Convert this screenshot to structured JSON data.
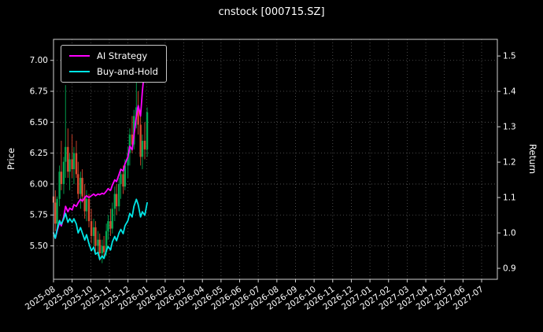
{
  "chart_data": {
    "type": "candlestick+line",
    "title": "cnstock [000715.SZ]",
    "ylabel_left": "Price",
    "ylabel_right": "Return",
    "grid": true,
    "legend_position": "upper left",
    "x_tick_labels": [
      "2025-08",
      "2025-09",
      "2025-10",
      "2025-11",
      "2025-12",
      "2026-01",
      "2026-02",
      "2026-03",
      "2026-04",
      "2026-05",
      "2026-06",
      "2026-07",
      "2026-08",
      "2026-09",
      "2026-10",
      "2026-11",
      "2026-12",
      "2027-01",
      "2027-02",
      "2027-03",
      "2027-04",
      "2027-05",
      "2027-06",
      "2027-07"
    ],
    "price_ticks": {
      "values": [
        7.0,
        6.75,
        6.5,
        6.25,
        6.0,
        5.75,
        5.5
      ],
      "labels": [
        "7.00",
        "6.75",
        "6.50",
        "6.25",
        "6.00",
        "5.75",
        "5.50"
      ]
    },
    "return_ticks": {
      "values": [
        1.5,
        1.4,
        1.3,
        1.2,
        1.1,
        1.0,
        0.9
      ],
      "labels": [
        "1.5",
        "1.4",
        "1.3",
        "1.2",
        "1.1",
        "1.0",
        "0.9"
      ]
    },
    "price_lim": [
      5.23,
      7.17
    ],
    "return_lim": [
      0.869,
      1.547
    ],
    "colors": {
      "background": "#000000",
      "text": "#ffffff",
      "grid": "#5a5a5a",
      "spine": "#d0d0d0",
      "candle_up": "#00a651",
      "candle_down": "#d9482f",
      "ai_strategy": "#ff00ff",
      "buy_and_hold": "#00e5e5"
    },
    "dates": [
      "2025-08-01",
      "2025-08-04",
      "2025-08-07",
      "2025-08-11",
      "2025-08-14",
      "2025-08-18",
      "2025-08-21",
      "2025-08-25",
      "2025-08-28",
      "2025-09-01",
      "2025-09-04",
      "2025-09-08",
      "2025-09-11",
      "2025-09-15",
      "2025-09-18",
      "2025-09-22",
      "2025-09-25",
      "2025-09-29",
      "2025-10-02",
      "2025-10-06",
      "2025-10-09",
      "2025-10-13",
      "2025-10-16",
      "2025-10-20",
      "2025-10-23",
      "2025-10-27",
      "2025-10-30",
      "2025-11-03",
      "2025-11-06",
      "2025-11-10",
      "2025-11-13",
      "2025-11-17",
      "2025-11-20",
      "2025-11-24",
      "2025-11-27",
      "2025-12-01",
      "2025-12-04",
      "2025-12-08",
      "2025-12-11",
      "2025-12-15",
      "2025-12-18",
      "2025-12-22",
      "2025-12-25",
      "2025-12-29",
      "2026-01-02"
    ],
    "candles": {
      "open": [
        5.9,
        5.85,
        5.68,
        5.88,
        6.1,
        6.0,
        6.18,
        6.3,
        6.1,
        6.2,
        6.12,
        6.25,
        6.08,
        5.92,
        6.05,
        5.9,
        5.78,
        5.88,
        5.7,
        5.58,
        5.65,
        5.5,
        5.55,
        5.44,
        5.5,
        5.45,
        5.62,
        5.7,
        5.64,
        5.8,
        5.92,
        5.82,
        6.0,
        6.08,
        5.98,
        6.15,
        6.25,
        6.4,
        6.32,
        6.55,
        6.62,
        6.48,
        6.22,
        6.35,
        6.28
      ],
      "high": [
        6.28,
        5.95,
        5.9,
        6.15,
        6.35,
        6.22,
        6.8,
        6.45,
        6.25,
        6.4,
        6.3,
        6.35,
        6.18,
        6.1,
        6.12,
        6.0,
        5.95,
        5.92,
        5.8,
        5.72,
        5.7,
        5.62,
        5.6,
        5.55,
        5.58,
        5.68,
        5.75,
        5.8,
        5.85,
        5.98,
        6.0,
        6.05,
        6.12,
        6.15,
        6.2,
        6.3,
        6.45,
        6.55,
        6.6,
        7.02,
        6.75,
        6.6,
        6.4,
        6.5,
        6.62
      ],
      "low": [
        5.8,
        5.62,
        5.6,
        5.82,
        5.95,
        5.92,
        6.05,
        6.05,
        5.95,
        6.05,
        6.0,
        6.05,
        5.88,
        5.8,
        5.85,
        5.72,
        5.7,
        5.65,
        5.52,
        5.48,
        5.45,
        5.42,
        5.38,
        5.36,
        5.4,
        5.42,
        5.55,
        5.58,
        5.6,
        5.7,
        5.75,
        5.78,
        5.88,
        5.92,
        5.95,
        6.05,
        6.15,
        6.25,
        6.28,
        6.45,
        6.4,
        6.15,
        6.12,
        6.2,
        6.22
      ],
      "close": [
        5.85,
        5.68,
        5.88,
        6.1,
        6.0,
        6.18,
        6.3,
        6.1,
        6.2,
        6.12,
        6.25,
        6.08,
        5.92,
        6.05,
        5.9,
        5.78,
        5.88,
        5.7,
        5.58,
        5.65,
        5.5,
        5.55,
        5.44,
        5.5,
        5.45,
        5.62,
        5.7,
        5.64,
        5.8,
        5.92,
        5.82,
        6.0,
        6.08,
        5.98,
        6.15,
        6.25,
        6.4,
        6.32,
        6.55,
        6.62,
        6.48,
        6.22,
        6.35,
        6.28,
        6.58
      ]
    },
    "series": [
      {
        "name": "AI Strategy",
        "axis": "return",
        "color": "#ff00ff",
        "values": [
          1.0,
          0.985,
          1.005,
          1.03,
          1.02,
          1.045,
          1.075,
          1.06,
          1.07,
          1.065,
          1.08,
          1.075,
          1.085,
          1.095,
          1.09,
          1.1,
          1.105,
          1.1,
          1.105,
          1.11,
          1.105,
          1.11,
          1.108,
          1.112,
          1.11,
          1.118,
          1.125,
          1.12,
          1.135,
          1.15,
          1.145,
          1.165,
          1.18,
          1.175,
          1.195,
          1.215,
          1.245,
          1.235,
          1.275,
          1.33,
          1.36,
          1.33,
          1.4,
          1.47,
          1.52
        ]
      },
      {
        "name": "Buy-and-Hold",
        "axis": "return",
        "color": "#00e5e5",
        "values": [
          1.0,
          0.985,
          1.01,
          1.035,
          1.025,
          1.04,
          1.055,
          1.03,
          1.04,
          1.03,
          1.04,
          1.025,
          1.0,
          1.015,
          1.0,
          0.98,
          0.995,
          0.97,
          0.95,
          0.96,
          0.94,
          0.945,
          0.925,
          0.935,
          0.928,
          0.95,
          0.962,
          0.952,
          0.975,
          0.99,
          0.978,
          1.0,
          1.01,
          0.998,
          1.02,
          1.035,
          1.055,
          1.045,
          1.075,
          1.095,
          1.08,
          1.045,
          1.06,
          1.05,
          1.085
        ]
      }
    ]
  }
}
